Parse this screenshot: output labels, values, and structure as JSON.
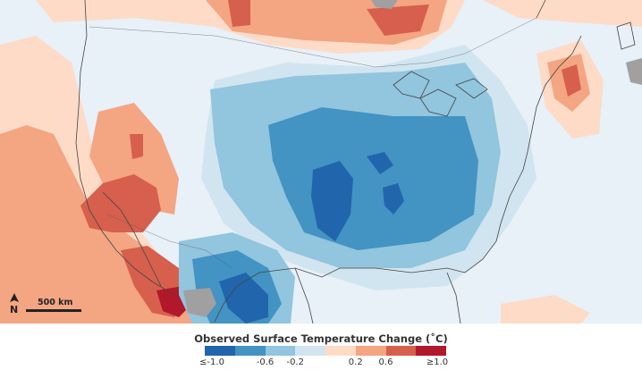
{
  "legend": {
    "title": "Observed Surface Temperature Change (˚C)",
    "colors": [
      "#2166ac",
      "#4393c3",
      "#92c5de",
      "#d1e5f0",
      "#fddbc7",
      "#f4a582",
      "#d6604d",
      "#b2182b"
    ],
    "ticks": [
      "≤-1.0",
      "-0.6",
      "-0.2",
      "0.2",
      "0.6",
      "≥1.0"
    ]
  },
  "scale": {
    "label": "500 km"
  },
  "compass": {
    "letter": "N",
    "icon": "north-arrow-icon"
  },
  "palette": {
    "background": "#e8f0f8",
    "land_no_data": "#a0a0a0",
    "coastline": "#444444"
  }
}
